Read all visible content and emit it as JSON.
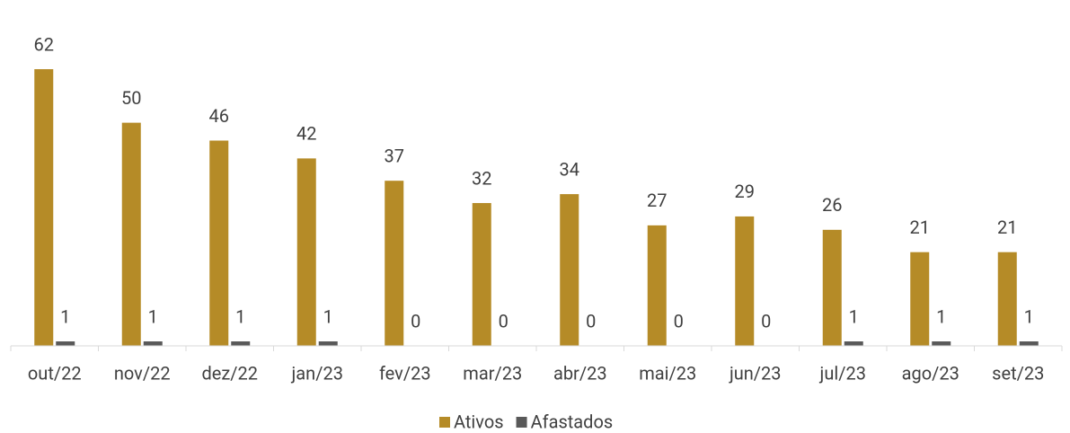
{
  "chart_data": {
    "type": "bar",
    "categories": [
      "out/22",
      "nov/22",
      "dez/22",
      "jan/23",
      "fev/23",
      "mar/23",
      "abr/23",
      "mai/23",
      "jun/23",
      "jul/23",
      "ago/23",
      "set/23"
    ],
    "series": [
      {
        "name": "Ativos",
        "color": "#b58b27",
        "values": [
          62,
          50,
          46,
          42,
          37,
          32,
          34,
          27,
          29,
          26,
          21,
          21
        ]
      },
      {
        "name": "Afastados",
        "color": "#595959",
        "values": [
          1,
          1,
          1,
          1,
          0,
          0,
          0,
          0,
          0,
          1,
          1,
          1
        ]
      }
    ],
    "ylim": [
      0,
      62
    ],
    "legend": "bottom"
  }
}
